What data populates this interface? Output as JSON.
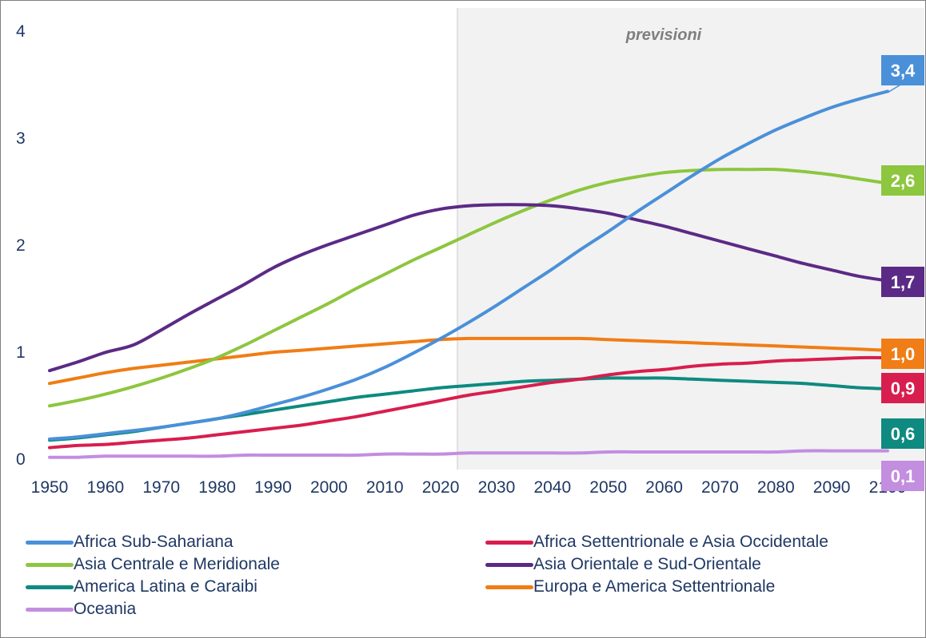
{
  "chart_data": {
    "type": "line",
    "title": "",
    "xlabel": "",
    "ylabel": "",
    "xlim": [
      1950,
      2100
    ],
    "ylim": [
      0,
      4
    ],
    "x_ticks": [
      "1950",
      "1960",
      "1970",
      "1980",
      "1990",
      "2000",
      "2010",
      "2020",
      "2030",
      "2040",
      "2050",
      "2060",
      "2070",
      "2080",
      "2090",
      "2100"
    ],
    "y_ticks": [
      "0",
      "1",
      "2",
      "3",
      "4"
    ],
    "forecast_region": {
      "label": "previsioni",
      "from": 2023,
      "to": 2100
    },
    "x": [
      1950,
      1955,
      1960,
      1965,
      1970,
      1975,
      1980,
      1985,
      1990,
      1995,
      2000,
      2005,
      2010,
      2015,
      2020,
      2025,
      2030,
      2035,
      2040,
      2045,
      2050,
      2055,
      2060,
      2065,
      2070,
      2075,
      2080,
      2085,
      2090,
      2095,
      2100
    ],
    "series": [
      {
        "name": "Africa Sub-Sahariana",
        "color": "#4a90d9",
        "end_label": "3,4",
        "values": [
          0.18,
          0.2,
          0.23,
          0.26,
          0.29,
          0.33,
          0.37,
          0.43,
          0.5,
          0.57,
          0.65,
          0.74,
          0.85,
          0.98,
          1.12,
          1.27,
          1.43,
          1.6,
          1.77,
          1.95,
          2.12,
          2.3,
          2.47,
          2.64,
          2.8,
          2.94,
          3.07,
          3.18,
          3.28,
          3.36,
          3.43
        ]
      },
      {
        "name": "Africa Settentrionale e Asia Occidentale",
        "color": "#d81e4e",
        "end_label": "0,9",
        "values": [
          0.1,
          0.12,
          0.13,
          0.15,
          0.17,
          0.19,
          0.22,
          0.25,
          0.28,
          0.31,
          0.35,
          0.39,
          0.44,
          0.49,
          0.54,
          0.59,
          0.63,
          0.67,
          0.71,
          0.74,
          0.78,
          0.81,
          0.83,
          0.86,
          0.88,
          0.89,
          0.91,
          0.92,
          0.93,
          0.94,
          0.94
        ]
      },
      {
        "name": "Asia Centrale e Meridionale",
        "color": "#8dc63f",
        "end_label": "2,6",
        "values": [
          0.49,
          0.54,
          0.6,
          0.67,
          0.75,
          0.84,
          0.94,
          1.06,
          1.19,
          1.32,
          1.45,
          1.59,
          1.72,
          1.85,
          1.97,
          2.09,
          2.21,
          2.32,
          2.42,
          2.51,
          2.58,
          2.63,
          2.67,
          2.69,
          2.7,
          2.7,
          2.7,
          2.68,
          2.65,
          2.61,
          2.57
        ]
      },
      {
        "name": "Asia Orientale e Sud-Orientale",
        "color": "#5b2a86",
        "end_label": "1,7",
        "values": [
          0.82,
          0.9,
          0.99,
          1.06,
          1.2,
          1.35,
          1.49,
          1.63,
          1.78,
          1.9,
          2.0,
          2.09,
          2.18,
          2.27,
          2.33,
          2.36,
          2.37,
          2.37,
          2.36,
          2.33,
          2.29,
          2.23,
          2.17,
          2.1,
          2.03,
          1.96,
          1.89,
          1.82,
          1.76,
          1.7,
          1.66
        ]
      },
      {
        "name": "America Latina e Caraibi",
        "color": "#0e8a80",
        "end_label": "0,6",
        "values": [
          0.17,
          0.19,
          0.22,
          0.25,
          0.29,
          0.33,
          0.37,
          0.41,
          0.45,
          0.49,
          0.53,
          0.57,
          0.6,
          0.63,
          0.66,
          0.68,
          0.7,
          0.72,
          0.73,
          0.74,
          0.75,
          0.75,
          0.75,
          0.74,
          0.73,
          0.72,
          0.71,
          0.7,
          0.68,
          0.66,
          0.65
        ]
      },
      {
        "name": "Europa e America Settentrionale",
        "color": "#f07d15",
        "end_label": "1,0",
        "values": [
          0.7,
          0.75,
          0.8,
          0.84,
          0.87,
          0.9,
          0.93,
          0.96,
          0.99,
          1.01,
          1.03,
          1.05,
          1.07,
          1.09,
          1.11,
          1.12,
          1.12,
          1.12,
          1.12,
          1.12,
          1.11,
          1.1,
          1.09,
          1.08,
          1.07,
          1.06,
          1.05,
          1.04,
          1.03,
          1.02,
          1.01
        ]
      },
      {
        "name": "Oceania",
        "color": "#c38de0",
        "end_label": "0,1",
        "values": [
          0.01,
          0.01,
          0.02,
          0.02,
          0.02,
          0.02,
          0.02,
          0.03,
          0.03,
          0.03,
          0.03,
          0.03,
          0.04,
          0.04,
          0.04,
          0.05,
          0.05,
          0.05,
          0.05,
          0.05,
          0.06,
          0.06,
          0.06,
          0.06,
          0.06,
          0.06,
          0.06,
          0.07,
          0.07,
          0.07,
          0.07
        ]
      }
    ],
    "legend_position": "bottom"
  }
}
